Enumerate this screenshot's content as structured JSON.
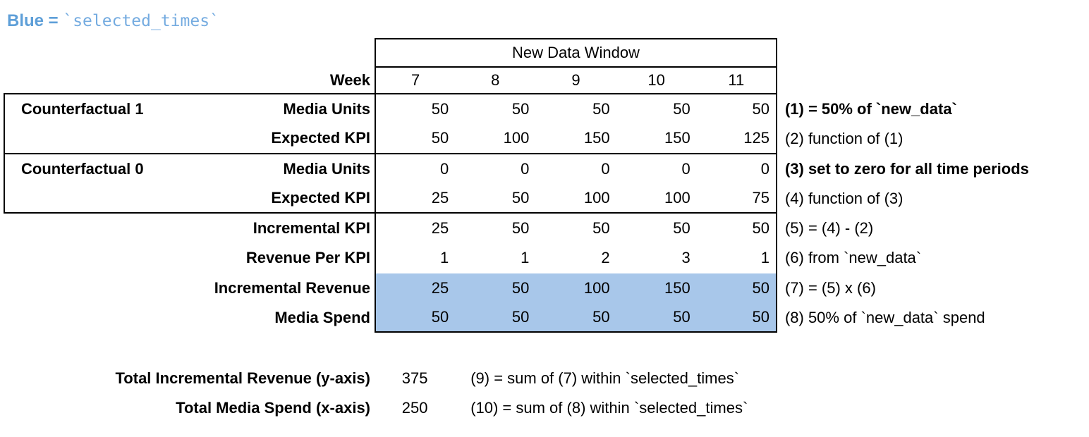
{
  "legend": {
    "prefix": "Blue = ",
    "code": "`selected_times`"
  },
  "table": {
    "window_header": "New Data Window",
    "week_label": "Week",
    "weeks": [
      "7",
      "8",
      "9",
      "10",
      "11"
    ],
    "rows": [
      {
        "group": "Counterfactual 1",
        "label": "Media Units",
        "values": [
          "50",
          "50",
          "50",
          "50",
          "50"
        ],
        "note": "(1) = 50% of `new_data`",
        "note_bold": true,
        "highlight": false
      },
      {
        "group": "",
        "label": "Expected KPI",
        "values": [
          "50",
          "100",
          "150",
          "150",
          "125"
        ],
        "note": "(2) function of (1)",
        "note_bold": false,
        "highlight": false
      },
      {
        "group": "Counterfactual 0",
        "label": "Media Units",
        "values": [
          "0",
          "0",
          "0",
          "0",
          "0"
        ],
        "note": "(3) set to zero for all time periods",
        "note_bold": true,
        "highlight": false
      },
      {
        "group": "",
        "label": "Expected KPI",
        "values": [
          "25",
          "50",
          "100",
          "100",
          "75"
        ],
        "note": "(4) function of (3)",
        "note_bold": false,
        "highlight": false
      },
      {
        "group": "",
        "label": "Incremental KPI",
        "values": [
          "25",
          "50",
          "50",
          "50",
          "50"
        ],
        "note": "(5) = (4) - (2)",
        "note_bold": false,
        "highlight": false
      },
      {
        "group": "",
        "label": "Revenue Per KPI",
        "values": [
          "1",
          "1",
          "2",
          "3",
          "1"
        ],
        "note": "(6) from `new_data`",
        "note_bold": false,
        "highlight": false
      },
      {
        "group": "",
        "label": "Incremental Revenue",
        "values": [
          "25",
          "50",
          "100",
          "150",
          "50"
        ],
        "note": "(7) = (5) x (6)",
        "note_bold": false,
        "highlight": true
      },
      {
        "group": "",
        "label": "Media Spend",
        "values": [
          "50",
          "50",
          "50",
          "50",
          "50"
        ],
        "note": "(8) 50% of `new_data` spend",
        "note_bold": false,
        "highlight": true
      }
    ]
  },
  "totals": [
    {
      "label": "Total Incremental Revenue (y-axis)",
      "value": "375",
      "note": "(9) = sum of (7) within `selected_times`"
    },
    {
      "label": "Total Media Spend (x-axis)",
      "value": "250",
      "note": "(10) = sum of (8) within `selected_times`"
    }
  ],
  "colors": {
    "highlight": "#a8c7ea",
    "legend_text": "#5e9fd8",
    "legend_code": "#74abe0"
  }
}
